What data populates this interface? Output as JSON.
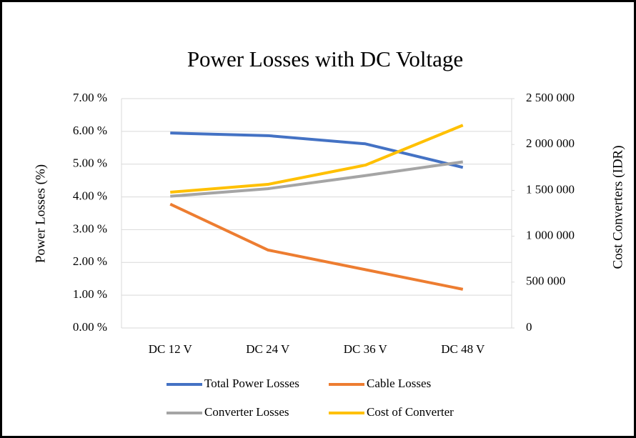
{
  "chart_data": {
    "type": "line",
    "title": "Power Losses with DC Voltage",
    "y_label": "Power Losses (%)",
    "y2_label": "Cost  Converters (IDR)",
    "categories": [
      "DC 12 V",
      "DC 24 V",
      "DC 36 V",
      "DC 48 V"
    ],
    "series": [
      {
        "name": "Total Power Losses",
        "color": "#4472c4",
        "values": [
          5.95,
          5.87,
          5.62,
          4.9
        ]
      },
      {
        "name": "Cable Losses",
        "color": "#ed7d31",
        "values": [
          3.78,
          2.38,
          1.78,
          1.18
        ]
      },
      {
        "name": "Converter Losses",
        "color": "#a5a5a5",
        "values": [
          4.02,
          4.25,
          4.65,
          5.07
        ]
      },
      {
        "name": "Cost of Converter",
        "color": "#ffc000",
        "axis": "y2",
        "values": [
          1480000,
          1565000,
          1775000,
          2210000
        ]
      }
    ],
    "ylim": [
      0,
      7
    ],
    "yticks": [
      {
        "value": 0,
        "label": "0.00 %"
      },
      {
        "value": 1,
        "label": "1.00 %"
      },
      {
        "value": 2,
        "label": "2.00 %"
      },
      {
        "value": 3,
        "label": "3.00 %"
      },
      {
        "value": 4,
        "label": "4.00 %"
      },
      {
        "value": 5,
        "label": "5.00 %"
      },
      {
        "value": 6,
        "label": "6.00 %"
      },
      {
        "value": 7,
        "label": "7.00 %"
      }
    ],
    "y2lim": [
      0,
      2500000
    ],
    "y2ticks": [
      0,
      {
        "value": 500000,
        "label": "500 000"
      },
      {
        "value": 1000000,
        "label": "1 000 000"
      },
      {
        "value": 1500000,
        "label": "1 500 000"
      },
      {
        "value": 2000000,
        "label": "2 000 000"
      },
      {
        "value": 2500000,
        "label": "2 500 000"
      }
    ],
    "grid": true,
    "legend": "bottom"
  }
}
